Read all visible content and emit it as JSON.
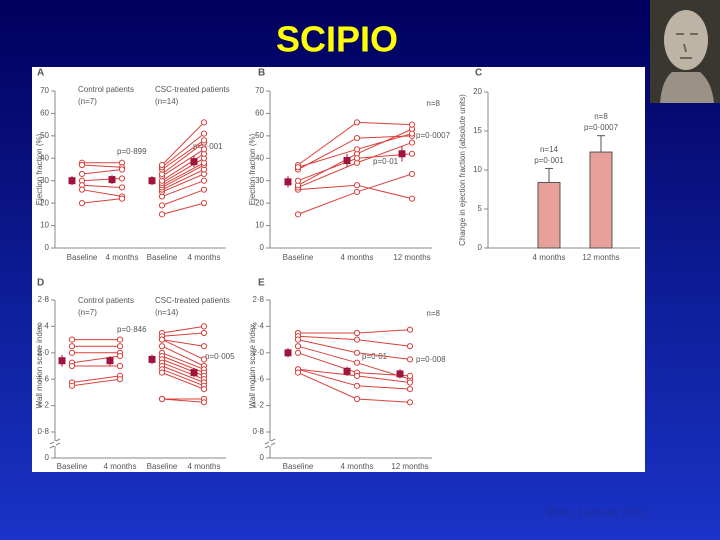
{
  "title": "SCIPIO",
  "citation": "Bolli, Lancet 2011",
  "chart_data": [
    {
      "type": "line",
      "label": "A",
      "ylabel": "Ejection fraction (%)",
      "color": "#d9403a",
      "categories": [
        "Baseline",
        "4 months",
        "Baseline",
        "4 months"
      ],
      "groups": [
        {
          "name": "Control patients",
          "n": "(n=7)"
        },
        {
          "name": "CSC-treated patients",
          "n": "(n=14)"
        }
      ],
      "annotations": [
        "p=0·899",
        "p=0·001"
      ],
      "ylim": [
        0,
        70
      ],
      "yticks": [
        0,
        10,
        20,
        30,
        40,
        50,
        60,
        70
      ],
      "series": [
        {
          "values": [
            38,
            38,
            null,
            null
          ]
        },
        {
          "values": [
            37,
            36,
            null,
            null
          ]
        },
        {
          "values": [
            33,
            35,
            null,
            null
          ]
        },
        {
          "values": [
            30,
            31,
            null,
            null
          ]
        },
        {
          "values": [
            28,
            27,
            null,
            null
          ]
        },
        {
          "values": [
            26,
            23,
            null,
            null
          ]
        },
        {
          "values": [
            20,
            22,
            null,
            null
          ]
        },
        {
          "values": [
            null,
            null,
            15,
            20
          ]
        },
        {
          "values": [
            null,
            null,
            19,
            26
          ]
        },
        {
          "values": [
            null,
            null,
            23,
            30
          ]
        },
        {
          "values": [
            null,
            null,
            25,
            33
          ]
        },
        {
          "values": [
            null,
            null,
            26,
            35
          ]
        },
        {
          "values": [
            null,
            null,
            27,
            37
          ]
        },
        {
          "values": [
            null,
            null,
            28,
            38
          ]
        },
        {
          "values": [
            null,
            null,
            29,
            40
          ]
        },
        {
          "values": [
            null,
            null,
            30,
            42
          ]
        },
        {
          "values": [
            null,
            null,
            32,
            44
          ]
        },
        {
          "values": [
            null,
            null,
            33,
            47
          ]
        },
        {
          "values": [
            null,
            null,
            35,
            48
          ]
        },
        {
          "values": [
            null,
            null,
            36,
            51
          ]
        },
        {
          "values": [
            null,
            null,
            37,
            56
          ]
        }
      ],
      "means": {
        "color": "#a0143c",
        "values": [
          30,
          30.5,
          30,
          38.5
        ],
        "errors": [
          2,
          2,
          2,
          2.5
        ]
      }
    },
    {
      "type": "line",
      "label": "B",
      "ylabel": "Ejection fraction (%)",
      "color": "#d9403a",
      "categories": [
        "Baseline",
        "4 months",
        "12 months"
      ],
      "annotations": [
        "n=8",
        "p=0·01",
        "p=0·0007"
      ],
      "ylim": [
        0,
        70
      ],
      "yticks": [
        0,
        10,
        20,
        30,
        40,
        50,
        60,
        70
      ],
      "series": [
        {
          "values": [
            15,
            25,
            33
          ]
        },
        {
          "values": [
            26,
            28,
            22
          ]
        },
        {
          "values": [
            27,
            38,
            47
          ]
        },
        {
          "values": [
            28,
            42,
            53
          ]
        },
        {
          "values": [
            30,
            40,
            42
          ]
        },
        {
          "values": [
            35,
            49,
            50
          ]
        },
        {
          "values": [
            37,
            56,
            55
          ]
        },
        {
          "values": [
            36,
            44,
            51
          ]
        }
      ],
      "means": {
        "color": "#a0143c",
        "values": [
          29.5,
          39,
          42
        ],
        "errors": [
          2.5,
          3,
          3.5
        ]
      }
    },
    {
      "type": "bar",
      "label": "C",
      "ylabel": "Change in ejection fraction (absolute units)",
      "color": "#e8a09a",
      "categories": [
        "4 months",
        "12 months"
      ],
      "annotations": [
        "n=14",
        "p=0·001",
        "n=8",
        "p=0·0007"
      ],
      "ylim": [
        0,
        20
      ],
      "yticks": [
        0,
        5,
        10,
        15,
        20
      ],
      "values": [
        8.4,
        12.3
      ],
      "errors": [
        1.8,
        2.1
      ]
    },
    {
      "type": "line",
      "label": "D",
      "ylabel": "Wall motion score index",
      "color": "#d9403a",
      "categories": [
        "Baseline",
        "4 months",
        "Baseline",
        "4 months"
      ],
      "groups": [
        {
          "name": "Control patients",
          "n": "(n=7)"
        },
        {
          "name": "CSC-treated patients",
          "n": "(n=14)"
        }
      ],
      "annotations": [
        "p=0·846",
        "p=0·005"
      ],
      "ylim": [
        0.8,
        2.8
      ],
      "break_tick": 0,
      "yticks": [
        {
          "value": 0.8,
          "label": "0·8"
        },
        {
          "value": 1.2,
          "label": "1·2"
        },
        {
          "value": 1.6,
          "label": "1·6"
        },
        {
          "value": 2.0,
          "label": "2·0"
        },
        {
          "value": 2.4,
          "label": "2·4"
        },
        {
          "value": 2.8,
          "label": "2·8"
        }
      ],
      "series": [
        {
          "values": [
            2.2,
            2.2,
            null,
            null
          ]
        },
        {
          "values": [
            2.1,
            2.1,
            null,
            null
          ]
        },
        {
          "values": [
            2.0,
            2.0,
            null,
            null
          ]
        },
        {
          "values": [
            1.85,
            1.95,
            null,
            null
          ]
        },
        {
          "values": [
            1.8,
            1.8,
            null,
            null
          ]
        },
        {
          "values": [
            1.55,
            1.65,
            null,
            null
          ]
        },
        {
          "values": [
            1.5,
            1.6,
            null,
            null
          ]
        },
        {
          "values": [
            null,
            null,
            2.3,
            2.4
          ]
        },
        {
          "values": [
            null,
            null,
            2.25,
            2.3
          ]
        },
        {
          "values": [
            null,
            null,
            2.2,
            2.1
          ]
        },
        {
          "values": [
            null,
            null,
            2.2,
            1.9
          ]
        },
        {
          "values": [
            null,
            null,
            2.1,
            1.8
          ]
        },
        {
          "values": [
            null,
            null,
            2.0,
            1.75
          ]
        },
        {
          "values": [
            null,
            null,
            1.95,
            1.7
          ]
        },
        {
          "values": [
            null,
            null,
            1.9,
            1.65
          ]
        },
        {
          "values": [
            null,
            null,
            1.85,
            1.6
          ]
        },
        {
          "values": [
            null,
            null,
            1.8,
            1.55
          ]
        },
        {
          "values": [
            null,
            null,
            1.75,
            1.5
          ]
        },
        {
          "values": [
            null,
            null,
            1.7,
            1.45
          ]
        },
        {
          "values": [
            null,
            null,
            1.3,
            1.3
          ]
        },
        {
          "values": [
            null,
            null,
            1.3,
            1.25
          ]
        }
      ],
      "means": {
        "color": "#a0143c",
        "values": [
          1.88,
          1.88,
          1.9,
          1.7
        ],
        "errors": [
          0.09,
          0.07,
          0.07,
          0.07
        ]
      }
    },
    {
      "type": "line",
      "label": "E",
      "ylabel": "Wall motion score index",
      "color": "#d9403a",
      "categories": [
        "Baseline",
        "4 months",
        "12 months"
      ],
      "annotations": [
        "n=8",
        "p=0·01",
        "p=0·008"
      ],
      "ylim": [
        0.8,
        2.8
      ],
      "break_tick": 0,
      "yticks": [
        {
          "value": 0.8,
          "label": "0·8"
        },
        {
          "value": 1.2,
          "label": "1·2"
        },
        {
          "value": 1.6,
          "label": "1·6"
        },
        {
          "value": 2.0,
          "label": "2·0"
        },
        {
          "value": 2.4,
          "label": "2·4"
        },
        {
          "value": 2.8,
          "label": "2·8"
        }
      ],
      "series": [
        {
          "values": [
            2.3,
            2.3,
            2.35
          ]
        },
        {
          "values": [
            2.25,
            2.2,
            2.1
          ]
        },
        {
          "values": [
            2.2,
            2.0,
            1.9
          ]
        },
        {
          "values": [
            2.1,
            1.85,
            1.6
          ]
        },
        {
          "values": [
            2.0,
            1.7,
            1.65
          ]
        },
        {
          "values": [
            1.75,
            1.65,
            1.55
          ]
        },
        {
          "values": [
            1.75,
            1.5,
            1.45
          ]
        },
        {
          "values": [
            1.7,
            1.3,
            1.25
          ]
        }
      ],
      "means": {
        "color": "#a0143c",
        "values": [
          2.0,
          1.72,
          1.68
        ],
        "errors": [
          0.07,
          0.07,
          0.07
        ]
      }
    }
  ]
}
